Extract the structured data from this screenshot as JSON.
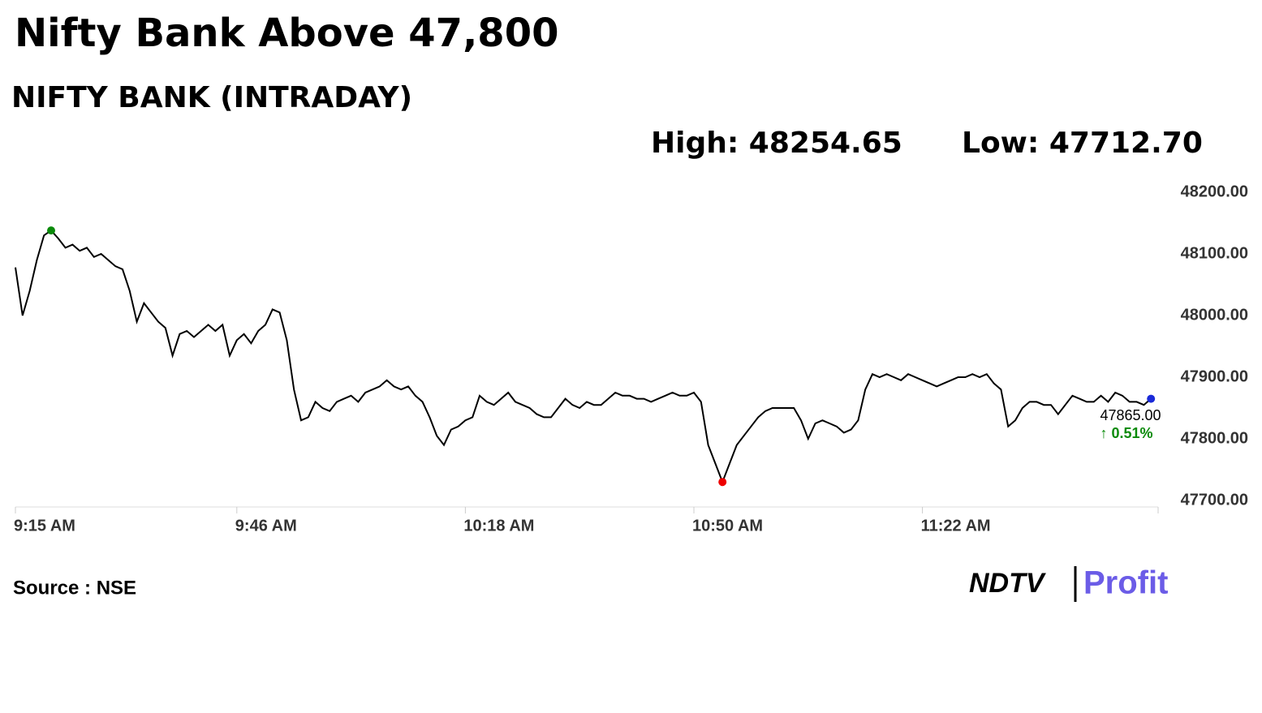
{
  "chart_data": {
    "type": "line",
    "title": "Nifty Bank Above 47,800",
    "subtitle": "NIFTY BANK (INTRADAY)",
    "high_label": "High: 48254.65",
    "low_label": "Low: 47712.70",
    "last_label": "47865.00",
    "change_label": "↑ 0.51%",
    "source": "Source : NSE",
    "logo_left": "NDTV",
    "logo_right": "Profit",
    "xlim": [
      555,
      715
    ],
    "xticks": [
      {
        "value": 555,
        "label": "9:15 AM"
      },
      {
        "value": 586,
        "label": "9:46 AM"
      },
      {
        "value": 618,
        "label": "10:18 AM"
      },
      {
        "value": 650,
        "label": "10:50 AM"
      },
      {
        "value": 682,
        "label": "11:22 AM"
      }
    ],
    "ylim": [
      47700,
      48200
    ],
    "yticks": [
      {
        "value": 47700,
        "label": "47700.00"
      },
      {
        "value": 47800,
        "label": "47800.00"
      },
      {
        "value": 47900,
        "label": "47900.00"
      },
      {
        "value": 48000,
        "label": "48000.00"
      },
      {
        "value": 48100,
        "label": "48100.00"
      },
      {
        "value": 48200,
        "label": "48200.00"
      }
    ],
    "x": [
      555,
      556,
      557,
      558,
      559,
      560,
      561,
      562,
      563,
      564,
      565,
      566,
      567,
      568,
      569,
      570,
      571,
      572,
      573,
      574,
      575,
      576,
      577,
      578,
      579,
      580,
      581,
      582,
      583,
      584,
      585,
      586,
      587,
      588,
      589,
      590,
      591,
      592,
      593,
      594,
      595,
      596,
      597,
      598,
      599,
      600,
      601,
      602,
      603,
      604,
      605,
      606,
      607,
      608,
      609,
      610,
      611,
      612,
      613,
      614,
      615,
      616,
      617,
      618,
      619,
      620,
      621,
      622,
      623,
      624,
      625,
      626,
      627,
      628,
      629,
      630,
      631,
      632,
      633,
      634,
      635,
      636,
      637,
      638,
      639,
      640,
      641,
      642,
      643,
      644,
      645,
      646,
      647,
      648,
      649,
      650,
      651,
      652,
      653,
      654,
      655,
      656,
      657,
      658,
      659,
      660,
      661,
      662,
      663,
      664,
      665,
      666,
      667,
      668,
      669,
      670,
      671,
      672,
      673,
      674,
      675,
      676,
      677,
      678,
      679,
      680,
      681,
      682,
      683,
      684,
      685,
      686,
      687,
      688,
      689,
      690,
      691,
      692,
      693,
      694,
      695,
      696,
      697,
      698,
      699,
      700,
      701,
      702,
      703,
      704,
      705,
      706,
      707,
      708,
      709,
      710,
      711,
      712,
      713,
      714
    ],
    "series": [
      {
        "name": "NIFTY BANK",
        "color": "#000000",
        "values": [
          48078,
          48000,
          48040,
          48090,
          48130,
          48138,
          48125,
          48110,
          48115,
          48105,
          48110,
          48095,
          48100,
          48090,
          48080,
          48075,
          48040,
          47990,
          48020,
          48005,
          47990,
          47980,
          47935,
          47970,
          47975,
          47965,
          47975,
          47985,
          47975,
          47985,
          47935,
          47960,
          47970,
          47955,
          47975,
          47985,
          48010,
          48005,
          47960,
          47880,
          47830,
          47835,
          47860,
          47850,
          47845,
          47860,
          47865,
          47870,
          47860,
          47875,
          47880,
          47885,
          47895,
          47885,
          47880,
          47885,
          47870,
          47860,
          47835,
          47805,
          47790,
          47815,
          47820,
          47830,
          47835,
          47870,
          47860,
          47855,
          47865,
          47875,
          47860,
          47855,
          47850,
          47840,
          47835,
          47835,
          47850,
          47865,
          47855,
          47850,
          47860,
          47855,
          47855,
          47865,
          47875,
          47870,
          47870,
          47865,
          47865,
          47860,
          47865,
          47870,
          47875,
          47870,
          47870,
          47875,
          47860,
          47790,
          47760,
          47730,
          47760,
          47790,
          47805,
          47820,
          47835,
          47845,
          47850,
          47850,
          47850,
          47850,
          47830,
          47800,
          47825,
          47830,
          47825,
          47820,
          47810,
          47815,
          47830,
          47880,
          47905,
          47900,
          47905,
          47900,
          47895,
          47905,
          47900,
          47895,
          47890,
          47885,
          47890,
          47895,
          47900,
          47900,
          47905,
          47900,
          47905,
          47890,
          47880,
          47820,
          47830,
          47850,
          47860,
          47860,
          47855,
          47855,
          47840,
          47855,
          47870,
          47865,
          47860,
          47860,
          47870,
          47860,
          47875,
          47870,
          47860,
          47860,
          47855,
          47865
        ]
      }
    ]
  }
}
